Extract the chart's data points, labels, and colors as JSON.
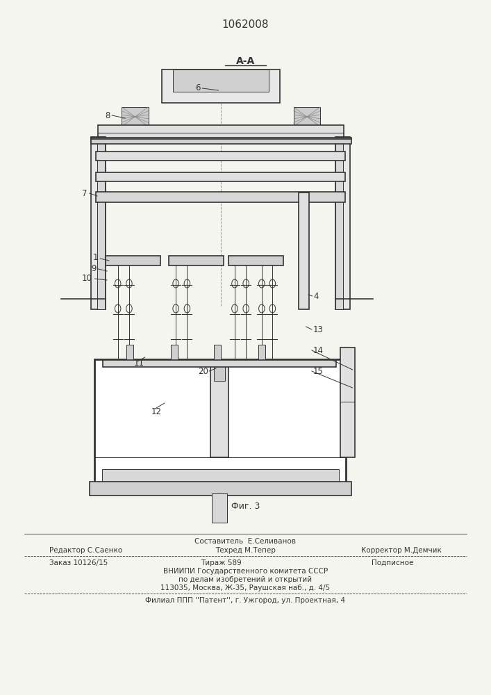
{
  "patent_number": "1062008",
  "section_label": "А-А",
  "fig_label": "Фиг. 3",
  "footer_line1_left": "Редактор С.Саенко",
  "footer_sestavitel": "Составитель  Е.Селиванов",
  "footer_tekhred": "Техред М.Тепер",
  "footer_line1_right": "Корректор М.Демчик",
  "footer_line2_col1": "Заказ 10126/15",
  "footer_line2_col2": "Тираж 589",
  "footer_line2_col3": "Подписное",
  "footer_line3": "ВНИИПИ Государственного комитета СССР",
  "footer_line4": "по делам изобретений и открытий",
  "footer_line5": "113035, Москва, Ж-35, Раушская наб., д. 4/5",
  "footer_line6": "Филиал ППП ''Патент'', г. Ужгород, ул. Проектная, 4",
  "bg_color": "#f5f5f0",
  "line_color": "#333333"
}
